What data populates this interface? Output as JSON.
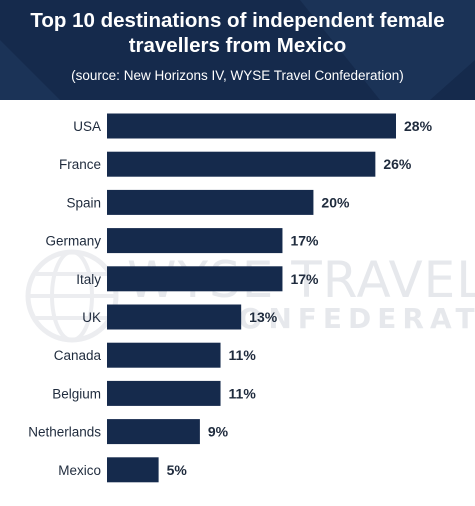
{
  "header": {
    "title_line1": "Top 10 destinations of independent female",
    "title_line2": "travellers from Mexico",
    "subtitle": "(source: New Horizons IV, WYSE Travel Confederation)"
  },
  "watermark": {
    "line1": "WYSE TRAVEL",
    "line2": "CONFEDERATION"
  },
  "colors": {
    "header_bg": "#152a4c",
    "bar": "#152a4c",
    "text": "#1f2b3d"
  },
  "chart_data": {
    "type": "bar",
    "orientation": "horizontal",
    "title": "Top 10 destinations of independent female travellers from Mexico",
    "subtitle": "(source: New Horizons IV, WYSE Travel Confederation)",
    "categories": [
      "USA",
      "France",
      "Spain",
      "Germany",
      "Italy",
      "UK",
      "Canada",
      "Belgium",
      "Netherlands",
      "Mexico"
    ],
    "values": [
      28,
      26,
      20,
      17,
      17,
      13,
      11,
      11,
      9,
      5
    ],
    "value_labels": [
      "28%",
      "26%",
      "20%",
      "17%",
      "17%",
      "13%",
      "11%",
      "11%",
      "9%",
      "5%"
    ],
    "unit": "%",
    "xlabel": "",
    "ylabel": "",
    "xlim": [
      0,
      28
    ],
    "grid": false,
    "legend": "none"
  }
}
